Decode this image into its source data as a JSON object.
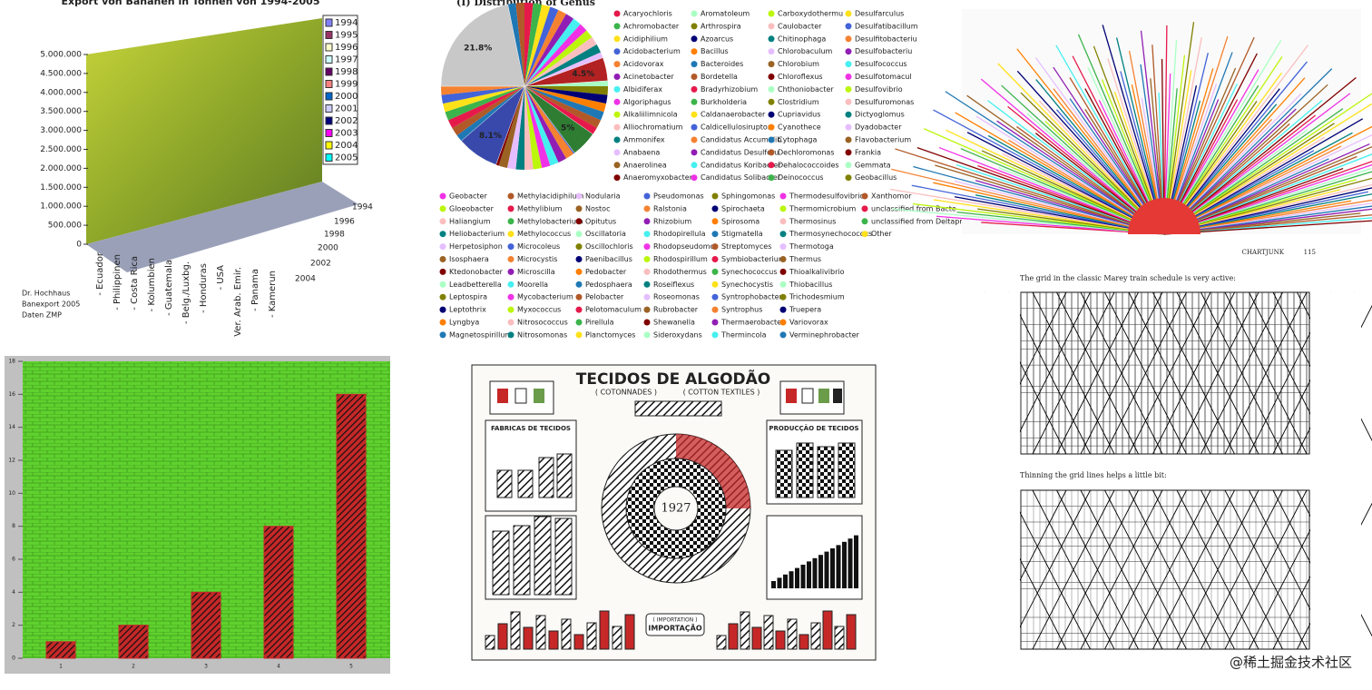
{
  "banana_chart": {
    "title": "Export von Bananen in Tonnen von 1994-2005",
    "legend": [
      "1994",
      "1995",
      "1996",
      "1997",
      "1998",
      "1999",
      "2000",
      "2001",
      "2002",
      "2003",
      "2004",
      "2005"
    ],
    "legend_colors": [
      "#8080ff",
      "#993366",
      "#ffffcc",
      "#ccffff",
      "#660066",
      "#ff8080",
      "#0066cc",
      "#ccccff",
      "#000080",
      "#ff00ff",
      "#ffff00",
      "#00ffff"
    ],
    "yticks": [
      {
        "value": 0,
        "label": "0"
      },
      {
        "value": 500000,
        "label": "500.000"
      },
      {
        "value": 1000000,
        "label": "1.000.000"
      },
      {
        "value": 1500000,
        "label": "1.500.000"
      },
      {
        "value": 2000000,
        "label": "2.000.000"
      },
      {
        "value": 2500000,
        "label": "2.500.000"
      },
      {
        "value": 3000000,
        "label": "3.000.000"
      },
      {
        "value": 3500000,
        "label": "3.500.000"
      },
      {
        "value": 4000000,
        "label": "4.000.000"
      },
      {
        "value": 4500000,
        "label": "4.500.000"
      },
      {
        "value": 5000000,
        "label": "5.000.000"
      }
    ],
    "ylim": [
      0,
      5000000
    ],
    "categories": [
      "- Ecuador",
      "- Philippinen",
      "- Costa Rica",
      "- Kolumbien",
      "- Guatemala",
      "- Belg./Luxbg.",
      "- Honduras",
      "- USA",
      "Ver. Arab. Emir.",
      "- Panama",
      "- Kamerun"
    ],
    "depth_ticks": [
      "1994",
      "1996",
      "1998",
      "2000",
      "2002",
      "2004"
    ],
    "note": [
      "Dr. Hochhaus",
      "Banexport 2005",
      "Daten ZMP"
    ]
  },
  "pie_chart": {
    "title": "(I) Distribution of Genus",
    "values": [
      21.8,
      4.5,
      5,
      8.1
    ],
    "value_labels": [
      "21.8%",
      "4.5%",
      "5%",
      "8.1%"
    ],
    "colors": [
      "#c8c8c8",
      "#b22222",
      "#2e7d32",
      "#3949ab"
    ],
    "legend": [
      "Acaryochloris",
      "Achromobacter",
      "Acidiphilium",
      "Acidobacterium",
      "Acidovorax",
      "Acinetobacter",
      "Albidiferax",
      "Algoriphagus",
      "Alkaliilimnicola",
      "Alliochromatium",
      "Ammonifex",
      "Anabaena",
      "Anaerolinea",
      "Anaeromyxobacter",
      "Aromatoleum",
      "Arthrospira",
      "Azoarcus",
      "Bacillus",
      "Bacteroides",
      "Bordetella",
      "Bradyrhizobium",
      "Burkholderia",
      "Caldanaerobacter",
      "Caldicellulosiruptor",
      "Candidatus Accumulib",
      "Candidatus Desulforu",
      "Candidatus Koribacter",
      "Candidatus Solibacter",
      "Carboxydothermu",
      "Caulobacter",
      "Chitinophaga",
      "Chlorobaculum",
      "Chlorobium",
      "Chloroflexus",
      "Chthoniobacter",
      "Clostridium",
      "Cupriavidus",
      "Cyanothece",
      "Cytophaga",
      "Dechloromonas",
      "Dehalococcoides",
      "Deinococcus",
      "Desulfarculus",
      "Desulfatibacillum",
      "Desulfitobacteriu",
      "Desulfobacteriu",
      "Desulfococcus",
      "Desulfotomacul",
      "Desulfovibrio",
      "Desulfuromonas",
      "Dictyoglomus",
      "Dyadobacter",
      "Flavobacterium",
      "Frankia",
      "Gemmata",
      "Geobacillus"
    ],
    "legend_lower": [
      "Geobacter",
      "Gloeobacter",
      "Haliangium",
      "Heliobacterium",
      "Herpetosiphon",
      "Isosphaera",
      "Ktedonobacter",
      "Leadbetterella",
      "Leptospira",
      "Leptothrix",
      "Lyngbya",
      "Magnetospirillum",
      "Methylacidiphilum",
      "Methylibium",
      "Methylobacterium",
      "Methylococcus",
      "Microcoleus",
      "Microcystis",
      "Microscilla",
      "Moorella",
      "Mycobacterium",
      "Myxococcus",
      "Nitrosococcus",
      "Nitrosomonas",
      "Nodularia",
      "Nostoc",
      "Opitutus",
      "Oscillatoria",
      "Oscillochloris",
      "Paenibacillus",
      "Pedobacter",
      "Pedosphaera",
      "Pelobacter",
      "Pelotomaculum",
      "Pirellula",
      "Planctomyces",
      "Pseudomonas",
      "Ralstonia",
      "Rhizobium",
      "Rhodopirellula",
      "Rhodopseudomc",
      "Rhodospirillum",
      "Rhodothermus",
      "Roseiflexus",
      "Roseomonas",
      "Rubrobacter",
      "Shewanella",
      "Sideroxydans",
      "Sphingomonas",
      "Spirochaeta",
      "Spirosoma",
      "Stigmatella",
      "Streptomyces",
      "Symbiobacterium",
      "Synechococcus",
      "Synechocystis",
      "Syntrophobacter",
      "Syntrophus",
      "Thermaerobacter",
      "Thermincola",
      "Thermodesulfovibrio",
      "Thermomicrobium",
      "Thermosinus",
      "Thermosynechococcus",
      "Thermotoga",
      "Thermus",
      "Thioalkalivibrio",
      "Thiobacillus",
      "Trichodesmium",
      "Truepera",
      "Variovorax",
      "Verminephrobacter",
      "Xanthomor",
      "unclassified from Bacte",
      "unclassified from Deltaprot",
      "Other"
    ]
  },
  "bar_chart": {
    "type": "bar",
    "categories": [
      "1",
      "2",
      "3",
      "4",
      "5"
    ],
    "values": [
      1,
      2,
      4,
      8,
      16
    ],
    "ylim": [
      0,
      18
    ],
    "yticks": [
      0,
      2,
      4,
      6,
      8,
      10,
      12,
      14,
      16,
      18
    ],
    "color": "#c62828",
    "background": "#5fd12e"
  },
  "poster": {
    "title": "TECIDOS DE ALGODÃO",
    "subtitle_left": "( COTONNADES )",
    "subtitle_right": "( COTTON TEXTILES )",
    "year": "1927",
    "left_box": "FABRICAS DE TECIDOS",
    "right_box": "PRODUCÇÃO DE TECIDOS",
    "bottom_label": "( IMPORTATION )",
    "bottom_title": "IMPORTAÇÃO"
  },
  "book_page": {
    "running_head": "CHARTJUNK",
    "page_number": "115",
    "caption_top": "The grid in the classic Marey train schedule is very active:",
    "caption_bottom": "Thinning the grid lines helps a little bit:"
  },
  "watermark": "@稀土掘金技术社区"
}
